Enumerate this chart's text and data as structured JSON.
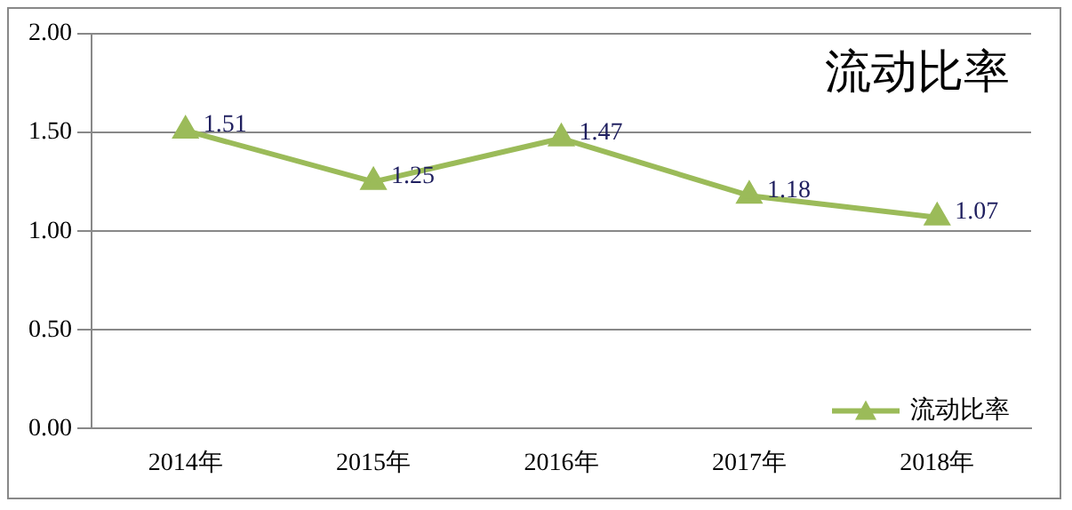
{
  "chart_data": {
    "type": "line",
    "title": "流动比率",
    "categories": [
      "2014年",
      "2015年",
      "2016年",
      "2017年",
      "2018年"
    ],
    "series": [
      {
        "name": "流动比率",
        "color": "#9bbb59",
        "values": [
          1.51,
          1.25,
          1.47,
          1.18,
          1.07
        ]
      }
    ],
    "ylim": [
      0,
      2
    ],
    "yticks": [
      {
        "value": 0,
        "label": "0.00"
      },
      {
        "value": 0.5,
        "label": "0.50"
      },
      {
        "value": 1,
        "label": "1.00"
      },
      {
        "value": 1.5,
        "label": "1.50"
      },
      {
        "value": 2,
        "label": "2.00"
      }
    ],
    "grid": "y",
    "legend": "bottom right",
    "marker": "triangle",
    "line_style": "solid",
    "data_labels": true
  }
}
